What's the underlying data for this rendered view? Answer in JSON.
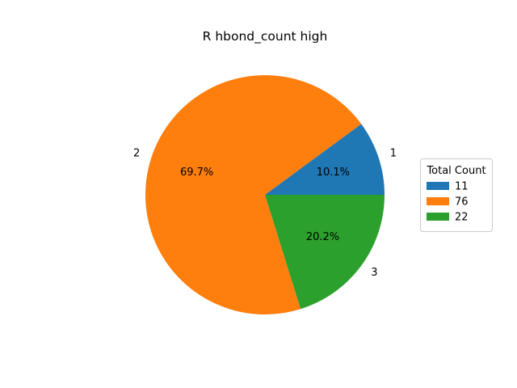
{
  "chart_data": {
    "type": "pie",
    "title": "R hbond_count high",
    "categories": [
      "1",
      "2",
      "3"
    ],
    "values": [
      11,
      76,
      22
    ],
    "percent_labels": [
      "10.1%",
      "69.7%",
      "20.2%"
    ],
    "colors": [
      "#1f77b4",
      "#ff7f0e",
      "#2ca02c"
    ],
    "legend": {
      "title": "Total Count",
      "entries": [
        "11",
        "76",
        "22"
      ],
      "placement": "right"
    }
  }
}
